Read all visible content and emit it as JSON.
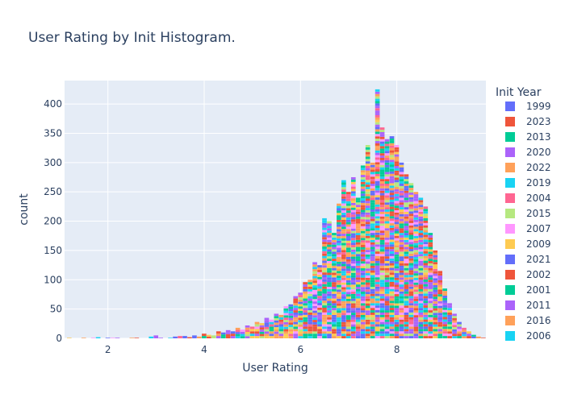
{
  "chart_data": {
    "type": "bar",
    "barmode": "stack",
    "title": "User Rating by Init Histogram.",
    "xlabel": "User Rating",
    "ylabel": "count",
    "xlim": [
      1.1,
      9.85
    ],
    "ylim": [
      0,
      440
    ],
    "xticks": [
      2,
      4,
      6,
      8
    ],
    "yticks": [
      0,
      50,
      100,
      150,
      200,
      250,
      300,
      350,
      400
    ],
    "bin_width": 0.1,
    "grid": true,
    "legend_position": "right",
    "legend_title": "Init Year",
    "series": [
      {
        "name": "1999",
        "color": "#636efa"
      },
      {
        "name": "2023",
        "color": "#EF553B"
      },
      {
        "name": "2013",
        "color": "#00cc96"
      },
      {
        "name": "2020",
        "color": "#ab63fa"
      },
      {
        "name": "2022",
        "color": "#FFA15A"
      },
      {
        "name": "2019",
        "color": "#19d3f3"
      },
      {
        "name": "2004",
        "color": "#FF6692"
      },
      {
        "name": "2015",
        "color": "#B6E880"
      },
      {
        "name": "2007",
        "color": "#FF97FF"
      },
      {
        "name": "2009",
        "color": "#FECB52"
      },
      {
        "name": "2021",
        "color": "#636efa"
      },
      {
        "name": "2002",
        "color": "#EF553B"
      },
      {
        "name": "2001",
        "color": "#00cc96"
      },
      {
        "name": "2011",
        "color": "#ab63fa"
      },
      {
        "name": "2016",
        "color": "#FFA15A"
      },
      {
        "name": "2006",
        "color": "#19d3f3"
      }
    ],
    "bins": [
      {
        "x": 1.2,
        "total": 1
      },
      {
        "x": 1.5,
        "total": 1
      },
      {
        "x": 1.7,
        "total": 1
      },
      {
        "x": 1.8,
        "total": 2
      },
      {
        "x": 2.0,
        "total": 1
      },
      {
        "x": 2.1,
        "total": 1
      },
      {
        "x": 2.2,
        "total": 1
      },
      {
        "x": 2.5,
        "total": 1
      },
      {
        "x": 2.6,
        "total": 1
      },
      {
        "x": 2.9,
        "total": 3
      },
      {
        "x": 3.0,
        "total": 5
      },
      {
        "x": 3.1,
        "total": 1
      },
      {
        "x": 3.3,
        "total": 1
      },
      {
        "x": 3.4,
        "total": 3
      },
      {
        "x": 3.5,
        "total": 4
      },
      {
        "x": 3.6,
        "total": 4
      },
      {
        "x": 3.7,
        "total": 2
      },
      {
        "x": 3.8,
        "total": 5
      },
      {
        "x": 3.9,
        "total": 3
      },
      {
        "x": 4.0,
        "total": 8
      },
      {
        "x": 4.1,
        "total": 6
      },
      {
        "x": 4.2,
        "total": 5
      },
      {
        "x": 4.3,
        "total": 12
      },
      {
        "x": 4.4,
        "total": 10
      },
      {
        "x": 4.5,
        "total": 14
      },
      {
        "x": 4.6,
        "total": 12
      },
      {
        "x": 4.7,
        "total": 18
      },
      {
        "x": 4.8,
        "total": 15
      },
      {
        "x": 4.9,
        "total": 22
      },
      {
        "x": 5.0,
        "total": 20
      },
      {
        "x": 5.1,
        "total": 28
      },
      {
        "x": 5.2,
        "total": 26
      },
      {
        "x": 5.3,
        "total": 35
      },
      {
        "x": 5.4,
        "total": 32
      },
      {
        "x": 5.5,
        "total": 42
      },
      {
        "x": 5.6,
        "total": 40
      },
      {
        "x": 5.7,
        "total": 55
      },
      {
        "x": 5.8,
        "total": 58
      },
      {
        "x": 5.9,
        "total": 72
      },
      {
        "x": 6.0,
        "total": 78
      },
      {
        "x": 6.1,
        "total": 96
      },
      {
        "x": 6.2,
        "total": 100
      },
      {
        "x": 6.3,
        "total": 130
      },
      {
        "x": 6.4,
        "total": 125
      },
      {
        "x": 6.5,
        "total": 205
      },
      {
        "x": 6.6,
        "total": 200
      },
      {
        "x": 6.7,
        "total": 180
      },
      {
        "x": 6.8,
        "total": 230
      },
      {
        "x": 6.9,
        "total": 270
      },
      {
        "x": 7.0,
        "total": 250
      },
      {
        "x": 7.1,
        "total": 275
      },
      {
        "x": 7.2,
        "total": 240
      },
      {
        "x": 7.3,
        "total": 295
      },
      {
        "x": 7.4,
        "total": 330
      },
      {
        "x": 7.5,
        "total": 300
      },
      {
        "x": 7.6,
        "total": 425
      },
      {
        "x": 7.7,
        "total": 360
      },
      {
        "x": 7.8,
        "total": 340
      },
      {
        "x": 7.9,
        "total": 345
      },
      {
        "x": 8.0,
        "total": 330
      },
      {
        "x": 8.1,
        "total": 300
      },
      {
        "x": 8.2,
        "total": 280
      },
      {
        "x": 8.3,
        "total": 265
      },
      {
        "x": 8.4,
        "total": 250
      },
      {
        "x": 8.5,
        "total": 240
      },
      {
        "x": 8.6,
        "total": 225
      },
      {
        "x": 8.7,
        "total": 180
      },
      {
        "x": 8.8,
        "total": 150
      },
      {
        "x": 8.9,
        "total": 115
      },
      {
        "x": 9.0,
        "total": 85
      },
      {
        "x": 9.1,
        "total": 60
      },
      {
        "x": 9.2,
        "total": 42
      },
      {
        "x": 9.3,
        "total": 28
      },
      {
        "x": 9.4,
        "total": 18
      },
      {
        "x": 9.5,
        "total": 12
      },
      {
        "x": 9.6,
        "total": 6
      },
      {
        "x": 9.7,
        "total": 3
      },
      {
        "x": 9.8,
        "total": 1
      }
    ]
  }
}
